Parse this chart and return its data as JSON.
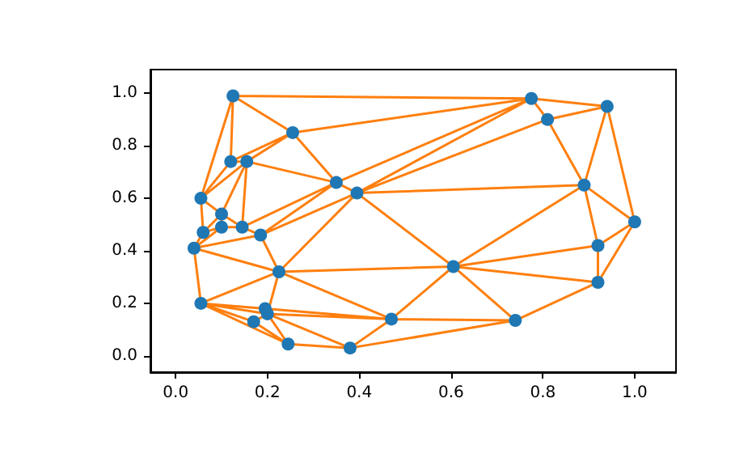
{
  "chart_data": {
    "type": "scatter",
    "xlim": [
      -0.055,
      1.09
    ],
    "ylim": [
      -0.062,
      1.09
    ],
    "xticks": [
      {
        "value": 0,
        "label": "0.0"
      },
      {
        "value": 0.2,
        "label": "0.2"
      },
      {
        "value": 0.4,
        "label": "0.4"
      },
      {
        "value": 0.6,
        "label": "0.6"
      },
      {
        "value": 0.8,
        "label": "0.8"
      },
      {
        "value": 1,
        "label": "1.0"
      }
    ],
    "yticks": [
      {
        "value": 0,
        "label": "0.0"
      },
      {
        "value": 0.2,
        "label": "0.2"
      },
      {
        "value": 0.4,
        "label": "0.4"
      },
      {
        "value": 0.6,
        "label": "0.6"
      },
      {
        "value": 0.8,
        "label": "0.8"
      },
      {
        "value": 1,
        "label": "1.0"
      }
    ],
    "grid": false,
    "series": [
      {
        "type": "line",
        "color": "#ff7f0e",
        "marker": "none",
        "line_style": "solid",
        "x": [
          0.125,
          0.255,
          0.775,
          0.125,
          0.12,
          0.255,
          0.155,
          0.055,
          0.12,
          0.155,
          0.35,
          0.255,
          null,
          0.125,
          0.055,
          0.1,
          0.155,
          0.145,
          0.35,
          0.775,
          0.81,
          0.94,
          0.775,
          0.395,
          0.81,
          0.89,
          0.94,
          1.0,
          0.89,
          0.92,
          1.0,
          0.92,
          0.92,
          0.605,
          0.89,
          0.395,
          0.35,
          0.185,
          0.395,
          0.605,
          0.92,
          0.74,
          0.605,
          0.47,
          0.74,
          0.38,
          0.47,
          0.225,
          0.605,
          null,
          0.395,
          0.225,
          0.185,
          0.04,
          0.225,
          0.055,
          0.04,
          0.06,
          0.055,
          null,
          0.1,
          0.1,
          0.145,
          0.1,
          0.06,
          0.1,
          0.04,
          null,
          0.145,
          0.185,
          null,
          0.225,
          0.2,
          0.055,
          0.195,
          0.2,
          0.47,
          0.195,
          null,
          0.17,
          0.055,
          0.245,
          0.17,
          0.2,
          0.38,
          0.245,
          null,
          0.2,
          0.245
        ],
        "values": [
          0.99,
          0.85,
          0.98,
          0.99,
          0.74,
          0.85,
          0.74,
          0.6,
          0.74,
          0.74,
          0.66,
          0.85,
          null,
          0.99,
          0.6,
          0.54,
          0.74,
          0.49,
          0.66,
          0.98,
          0.9,
          0.95,
          0.98,
          0.62,
          0.9,
          0.65,
          0.95,
          0.51,
          0.65,
          0.42,
          0.51,
          0.28,
          0.42,
          0.34,
          0.65,
          0.62,
          0.66,
          0.46,
          0.62,
          0.34,
          0.28,
          0.135,
          0.34,
          0.14,
          0.135,
          0.03,
          0.14,
          0.32,
          0.34,
          null,
          0.62,
          0.32,
          0.46,
          0.41,
          0.32,
          0.2,
          0.41,
          0.47,
          0.6,
          null,
          0.54,
          0.49,
          0.49,
          0.54,
          0.47,
          0.49,
          0.41,
          null,
          0.49,
          0.46,
          null,
          0.32,
          0.16,
          0.2,
          0.18,
          0.16,
          0.14,
          0.18,
          null,
          0.13,
          0.2,
          0.045,
          0.13,
          0.16,
          0.03,
          0.045,
          null,
          0.16,
          0.045
        ]
      },
      {
        "color": "#1f77b4",
        "marker": "circle",
        "x": [
          0.125,
          0.255,
          0.775,
          0.81,
          0.94,
          0.12,
          0.155,
          0.35,
          0.395,
          0.055,
          0.89,
          0.1,
          0.1,
          0.145,
          0.06,
          0.185,
          0.04,
          1.0,
          0.92,
          0.225,
          0.605,
          0.92,
          0.055,
          0.195,
          0.2,
          0.17,
          0.47,
          0.74,
          0.245,
          0.38
        ],
        "values": [
          0.99,
          0.85,
          0.98,
          0.9,
          0.95,
          0.74,
          0.74,
          0.66,
          0.62,
          0.6,
          0.65,
          0.54,
          0.49,
          0.49,
          0.47,
          0.46,
          0.41,
          0.51,
          0.42,
          0.32,
          0.34,
          0.28,
          0.2,
          0.18,
          0.16,
          0.13,
          0.14,
          0.135,
          0.045,
          0.03
        ]
      }
    ]
  }
}
